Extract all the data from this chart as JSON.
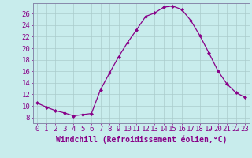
{
  "x": [
    0,
    1,
    2,
    3,
    4,
    5,
    6,
    7,
    8,
    9,
    10,
    11,
    12,
    13,
    14,
    15,
    16,
    17,
    18,
    19,
    20,
    21,
    22,
    23
  ],
  "y": [
    10.5,
    9.8,
    9.2,
    8.8,
    8.3,
    8.5,
    8.7,
    12.8,
    15.7,
    18.5,
    21.0,
    23.2,
    25.5,
    26.1,
    27.1,
    27.3,
    26.7,
    24.8,
    22.2,
    19.2,
    16.1,
    13.8,
    12.3,
    11.5
  ],
  "line_color": "#880088",
  "marker": "D",
  "marker_size": 2.0,
  "bg_color": "#c8ecec",
  "grid_color": "#aacccc",
  "xlabel": "Windchill (Refroidissement éolien,°C)",
  "yticks": [
    8,
    10,
    12,
    14,
    16,
    18,
    20,
    22,
    24,
    26
  ],
  "xlim": [
    -0.5,
    23.5
  ],
  "ylim": [
    7.0,
    27.8
  ],
  "tick_fontsize": 6.5,
  "label_fontsize": 7.0
}
